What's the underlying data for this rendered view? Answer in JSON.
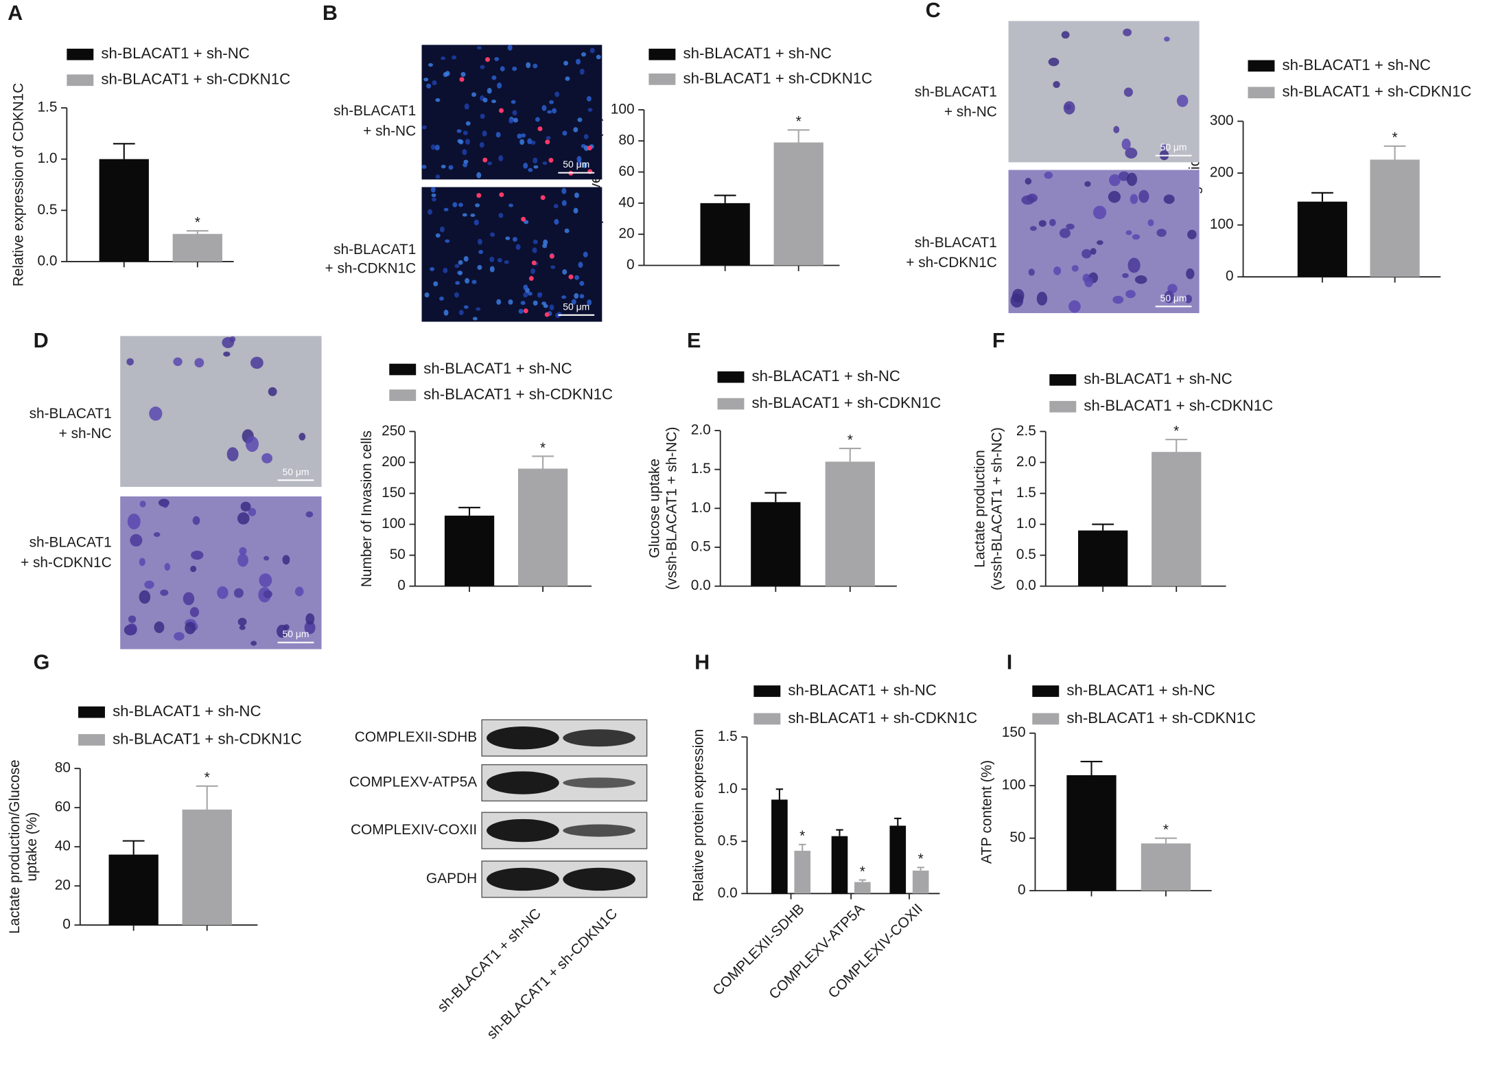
{
  "chart_data": [
    {
      "type": "bar",
      "panel": "A",
      "ylabel": [
        "Relative expression of CDKN1C"
      ],
      "categories": [
        null
      ],
      "series": [
        {
          "name": "sh-BLACAT1 + sh-NC",
          "color": "#0a0a0a",
          "values": [
            1.0
          ],
          "errors": [
            0.15
          ]
        },
        {
          "name": "sh-BLACAT1 + sh-CDKN1C",
          "color": "#a6a6a8",
          "values": [
            0.27
          ],
          "errors": [
            0.03
          ],
          "significance": [
            "*"
          ]
        }
      ],
      "ylim": [
        0,
        1.5
      ],
      "yticks": [
        {
          "value": 0,
          "label": "0.0"
        },
        0.5,
        {
          "value": 1,
          "label": "1.0"
        },
        1.5
      ]
    },
    {
      "type": "bar",
      "panel": "B",
      "ylabel": [
        "EDU-positive cells (%)"
      ],
      "categories": [
        null
      ],
      "series": [
        {
          "name": "sh-BLACAT1 + sh-NC",
          "color": "#0a0a0a",
          "values": [
            40
          ],
          "errors": [
            5
          ]
        },
        {
          "name": "sh-BLACAT1 + sh-CDKN1C",
          "color": "#a6a6a8",
          "values": [
            79
          ],
          "errors": [
            8
          ],
          "significance": [
            "*"
          ]
        }
      ],
      "ylim": [
        0,
        100
      ],
      "yticks": [
        0,
        20,
        40,
        60,
        80,
        100
      ]
    },
    {
      "type": "bar",
      "panel": "C",
      "ylabel": [
        "Number of Migration cells"
      ],
      "categories": [
        null
      ],
      "series": [
        {
          "name": "sh-BLACAT1 + sh-NC",
          "color": "#0a0a0a",
          "values": [
            145
          ],
          "errors": [
            17
          ]
        },
        {
          "name": "sh-BLACAT1 + sh-CDKN1C",
          "color": "#a6a6a8",
          "values": [
            226
          ],
          "errors": [
            26
          ],
          "significance": [
            "*"
          ]
        }
      ],
      "ylim": [
        0,
        300
      ],
      "yticks": [
        0,
        100,
        200,
        300
      ]
    },
    {
      "type": "bar",
      "panel": "D",
      "ylabel": [
        "Number of Invasion cells"
      ],
      "categories": [
        null
      ],
      "series": [
        {
          "name": "sh-BLACAT1 + sh-NC",
          "color": "#0a0a0a",
          "values": [
            114
          ],
          "errors": [
            13
          ]
        },
        {
          "name": "sh-BLACAT1 + sh-CDKN1C",
          "color": "#a6a6a8",
          "values": [
            190
          ],
          "errors": [
            20
          ],
          "significance": [
            "*"
          ]
        }
      ],
      "ylim": [
        0,
        250
      ],
      "yticks": [
        0,
        50,
        100,
        150,
        200,
        250
      ]
    },
    {
      "type": "bar",
      "panel": "E",
      "ylabel": [
        "Glucose uptake",
        "(vssh-BLACAT1 + sh-NC)"
      ],
      "categories": [
        null
      ],
      "series": [
        {
          "name": "sh-BLACAT1 + sh-NC",
          "color": "#0a0a0a",
          "values": [
            1.08
          ],
          "errors": [
            0.12
          ]
        },
        {
          "name": "sh-BLACAT1 + sh-CDKN1C",
          "color": "#a6a6a8",
          "values": [
            1.6
          ],
          "errors": [
            0.17
          ],
          "significance": [
            "*"
          ]
        }
      ],
      "ylim": [
        0,
        2
      ],
      "yticks": [
        {
          "value": 0,
          "label": "0.0"
        },
        0.5,
        {
          "value": 1,
          "label": "1.0"
        },
        1.5,
        {
          "value": 2,
          "label": "2.0"
        }
      ]
    },
    {
      "type": "bar",
      "panel": "F",
      "ylabel": [
        "Lactate production",
        "(vssh-BLACAT1 + sh-NC)"
      ],
      "categories": [
        null
      ],
      "series": [
        {
          "name": "sh-BLACAT1 + sh-NC",
          "color": "#0a0a0a",
          "values": [
            0.9
          ],
          "errors": [
            0.1
          ]
        },
        {
          "name": "sh-BLACAT1 + sh-CDKN1C",
          "color": "#a6a6a8",
          "values": [
            2.17
          ],
          "errors": [
            0.2
          ],
          "significance": [
            "*"
          ]
        }
      ],
      "ylim": [
        0,
        2.5
      ],
      "yticks": [
        {
          "value": 0,
          "label": "0.0"
        },
        0.5,
        {
          "value": 1,
          "label": "1.0"
        },
        1.5,
        {
          "value": 2,
          "label": "2.0"
        },
        2.5
      ]
    },
    {
      "type": "bar",
      "panel": "G",
      "ylabel": [
        "Lactate production/Glucose",
        "uptake (%)"
      ],
      "categories": [
        null
      ],
      "series": [
        {
          "name": "sh-BLACAT1 + sh-NC",
          "color": "#0a0a0a",
          "values": [
            36
          ],
          "errors": [
            7
          ]
        },
        {
          "name": "sh-BLACAT1 + sh-CDKN1C",
          "color": "#a6a6a8",
          "values": [
            59
          ],
          "errors": [
            12
          ],
          "significance": [
            "*"
          ]
        }
      ],
      "ylim": [
        0,
        80
      ],
      "yticks": [
        0,
        20,
        40,
        60,
        80
      ]
    },
    {
      "type": "bar",
      "panel": "H",
      "ylabel": [
        "Relative protein expression"
      ],
      "categories": [
        "COMPLEXII-SDHB",
        "COMPLEXV-ATP5A",
        "COMPLEXIV-COXII"
      ],
      "series": [
        {
          "name": "sh-BLACAT1 + sh-NC",
          "color": "#0a0a0a",
          "values": [
            0.9,
            0.55,
            0.65
          ],
          "errors": [
            0.1,
            0.06,
            0.07
          ]
        },
        {
          "name": "sh-BLACAT1 + sh-CDKN1C",
          "color": "#a6a6a8",
          "values": [
            0.41,
            0.11,
            0.22
          ],
          "errors": [
            0.06,
            0.02,
            0.03
          ],
          "significance": [
            "*",
            "*",
            "*"
          ]
        }
      ],
      "ylim": [
        0,
        1.5
      ],
      "yticks": [
        {
          "value": 0,
          "label": "0.0"
        },
        0.5,
        {
          "value": 1,
          "label": "1.0"
        },
        1.5
      ]
    },
    {
      "type": "bar",
      "panel": "I",
      "ylabel": [
        "ATP content (%)"
      ],
      "categories": [
        null
      ],
      "series": [
        {
          "name": "sh-BLACAT1 + sh-NC",
          "color": "#0a0a0a",
          "values": [
            110
          ],
          "errors": [
            13
          ]
        },
        {
          "name": "sh-BLACAT1 + sh-CDKN1C",
          "color": "#a6a6a8",
          "values": [
            45
          ],
          "errors": [
            5
          ],
          "significance": [
            "*"
          ]
        }
      ],
      "ylim": [
        0,
        150
      ],
      "yticks": [
        0,
        50,
        100,
        150
      ]
    }
  ],
  "images": [
    {
      "rows": [
        [
          "sh-BLACAT1",
          "+ sh-NC"
        ],
        [
          "sh-BLACAT1",
          "+ sh-CDKN1C"
        ]
      ],
      "scale_bar": "50 μm"
    },
    {
      "rows": [
        [
          "sh-BLACAT1",
          "+ sh-NC"
        ],
        [
          "sh-BLACAT1",
          "+ sh-CDKN1C"
        ]
      ],
      "scale_bar": "50 μm"
    },
    {
      "rows": [
        [
          "sh-BLACAT1",
          "+ sh-NC"
        ],
        [
          "sh-BLACAT1",
          "+ sh-CDKN1C"
        ]
      ],
      "scale_bar": "50 μm"
    }
  ],
  "blot": {
    "bands": [
      "COMPLEXII-SDHB",
      "COMPLEXV-ATP5A",
      "COMPLEXIV-COXII",
      "GAPDH"
    ],
    "lanes": [
      "sh-BLACAT1 + sh-NC",
      "sh-BLACAT1 + sh-CDKN1C"
    ]
  }
}
